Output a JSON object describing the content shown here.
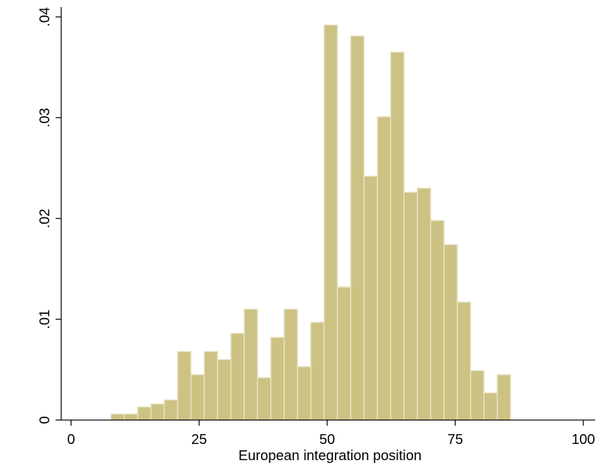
{
  "chart_data": {
    "type": "bar",
    "title": "",
    "xlabel": "European integration position",
    "ylabel": "",
    "xlim": [
      0,
      100
    ],
    "ylim": [
      0,
      0.04
    ],
    "x_ticks": [
      0,
      25,
      50,
      75,
      100
    ],
    "x_tick_labels": [
      "0",
      "25",
      "50",
      "75",
      "100"
    ],
    "y_ticks": [
      0,
      0.01,
      0.02,
      0.03,
      0.04
    ],
    "y_tick_labels": [
      "0",
      ".01",
      ".02",
      ".03",
      ".04"
    ],
    "grid": false,
    "legend": "none",
    "bar_color": "#ccc283",
    "bar_edge_color": "#e8e3c4",
    "bin_width": 2.6,
    "bins": [
      {
        "start": 7.8,
        "value": 0.0006
      },
      {
        "start": 10.4,
        "value": 0.0006
      },
      {
        "start": 13.0,
        "value": 0.0013
      },
      {
        "start": 15.6,
        "value": 0.0016
      },
      {
        "start": 18.2,
        "value": 0.002
      },
      {
        "start": 20.8,
        "value": 0.0068
      },
      {
        "start": 23.4,
        "value": 0.0045
      },
      {
        "start": 26.0,
        "value": 0.0068
      },
      {
        "start": 28.6,
        "value": 0.006
      },
      {
        "start": 31.2,
        "value": 0.0086
      },
      {
        "start": 33.8,
        "value": 0.011
      },
      {
        "start": 36.4,
        "value": 0.0042
      },
      {
        "start": 39.0,
        "value": 0.0082
      },
      {
        "start": 41.6,
        "value": 0.011
      },
      {
        "start": 44.2,
        "value": 0.0053
      },
      {
        "start": 46.8,
        "value": 0.0097
      },
      {
        "start": 49.4,
        "value": 0.0392
      },
      {
        "start": 52.0,
        "value": 0.0132
      },
      {
        "start": 54.6,
        "value": 0.0381
      },
      {
        "start": 57.2,
        "value": 0.0242
      },
      {
        "start": 59.8,
        "value": 0.0301
      },
      {
        "start": 62.4,
        "value": 0.0365
      },
      {
        "start": 65.0,
        "value": 0.0226
      },
      {
        "start": 67.6,
        "value": 0.023
      },
      {
        "start": 70.2,
        "value": 0.0198
      },
      {
        "start": 72.8,
        "value": 0.0174
      },
      {
        "start": 75.4,
        "value": 0.0117
      },
      {
        "start": 78.0,
        "value": 0.0049
      },
      {
        "start": 80.6,
        "value": 0.0027
      },
      {
        "start": 83.2,
        "value": 0.0045
      }
    ]
  }
}
